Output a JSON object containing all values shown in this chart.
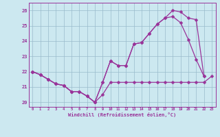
{
  "xlabel": "Windchill (Refroidissement éolien,°C)",
  "x_hours": [
    0,
    1,
    2,
    3,
    4,
    5,
    6,
    7,
    8,
    9,
    10,
    11,
    12,
    13,
    14,
    15,
    16,
    17,
    18,
    19,
    20,
    21,
    22,
    23
  ],
  "line1": [
    22.0,
    21.8,
    21.5,
    21.2,
    21.1,
    20.7,
    20.7,
    20.4,
    20.0,
    20.5,
    21.3,
    21.3,
    21.3,
    21.3,
    21.3,
    21.3,
    21.3,
    21.3,
    21.3,
    21.3,
    21.3,
    21.3,
    21.3,
    21.7
  ],
  "line2": [
    22.0,
    21.8,
    21.5,
    21.2,
    21.1,
    20.7,
    20.7,
    20.4,
    20.0,
    21.3,
    22.7,
    22.4,
    22.4,
    23.8,
    23.9,
    24.5,
    25.1,
    25.5,
    25.6,
    25.2,
    24.1,
    22.8,
    21.7,
    null
  ],
  "line3": [
    22.0,
    21.8,
    21.5,
    21.2,
    21.1,
    20.7,
    20.7,
    20.4,
    20.0,
    21.3,
    22.7,
    22.4,
    22.4,
    23.8,
    23.9,
    24.5,
    25.1,
    25.5,
    26.0,
    25.9,
    25.5,
    25.4,
    21.7,
    null
  ],
  "bg_color": "#cce8f0",
  "line_color": "#993399",
  "grid_color": "#99bbcc",
  "ylim_min": 19.7,
  "ylim_max": 26.5,
  "yticks": [
    20,
    21,
    22,
    23,
    24,
    25,
    26
  ],
  "marker": "D",
  "marker_size": 2.5,
  "linewidth": 0.9
}
